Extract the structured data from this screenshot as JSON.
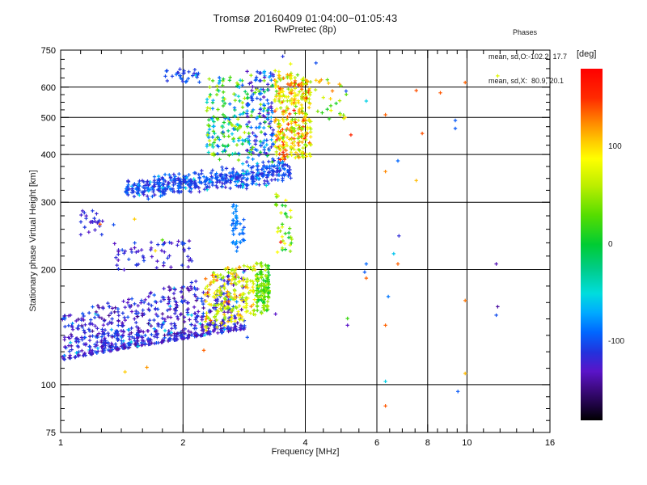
{
  "header": {
    "title": "Tromsø 20160409 01:04:00−01:05:43",
    "subtitle": "RwPretec (8p)"
  },
  "stats": {
    "heading": "Phases",
    "line_o": "mean, sd,O:-102.2, 17.7",
    "line_x": "mean, sd,X:  80.9, 20.1"
  },
  "chart_data": {
    "type": "scatter",
    "title": "Tromsø 20160409 01:04:00−01:05:43",
    "subtitle": "RwPretec (8p)",
    "xlabel": "Frequency [MHz]",
    "ylabel": "Stationary phase Virtual Height [km]",
    "xscale": "log",
    "yscale": "log",
    "xlim": [
      1,
      16
    ],
    "ylim": [
      75,
      750
    ],
    "xticks": [
      1,
      2,
      4,
      6,
      8,
      10,
      16
    ],
    "xticks_minor": [
      1.12,
      1.26,
      1.41,
      1.59,
      1.78,
      2.24,
      2.52,
      2.83,
      3.17,
      3.56,
      4.43,
      4.9,
      5.42,
      6.45,
      6.93,
      7.45,
      8.46,
      8.94,
      9.46,
      10.98,
      12.06,
      13.25,
      14.55
    ],
    "yticks": [
      75,
      100,
      200,
      300,
      400,
      500,
      600,
      750
    ],
    "yticks_minor": [
      80.6,
      86.6,
      93,
      110.4,
      121.9,
      134.6,
      148.6,
      164,
      181.1,
      217,
      235,
      255,
      276.5,
      322.4,
      346.4,
      372.2,
      423,
      447.2,
      472.9,
      523.4,
      547.9,
      573.6,
      634.5,
      670.9,
      709.5
    ],
    "grid_x": [
      2,
      4,
      6,
      8,
      10
    ],
    "grid_y": [
      100,
      200,
      300,
      400,
      500,
      600
    ],
    "grid": true,
    "marker": "plus",
    "seed": 20160409,
    "colorbar": {
      "label": "[deg]",
      "min": -180,
      "max": 180,
      "ticks": [
        100,
        0,
        -100
      ],
      "stops": [
        [
          180,
          "#ff0000"
        ],
        [
          150,
          "#ff2a00"
        ],
        [
          125,
          "#ff8800"
        ],
        [
          105,
          "#ffcc00"
        ],
        [
          88,
          "#ffff00"
        ],
        [
          60,
          "#bbee00"
        ],
        [
          30,
          "#55dd00"
        ],
        [
          0,
          "#00cc33"
        ],
        [
          -25,
          "#00cc88"
        ],
        [
          -50,
          "#00dddd"
        ],
        [
          -70,
          "#00aaff"
        ],
        [
          -90,
          "#0066ff"
        ],
        [
          -110,
          "#2233dd"
        ],
        [
          -130,
          "#5a14c8"
        ],
        [
          -148,
          "#3d0a80"
        ],
        [
          -165,
          "#1d0340"
        ],
        [
          -180,
          "#000000"
        ]
      ]
    },
    "clusters": [
      {
        "name": "e-region-main-cloud",
        "count": 760,
        "f": [
          1.0,
          2.85
        ],
        "h_bottom": [
          116,
          140
        ],
        "h_top": [
          152,
          200
        ],
        "phase": [
          -145,
          -95
        ],
        "phase2": [
          -80,
          -52
        ],
        "phase2_frac": 0.05,
        "bias": "bottom",
        "bias_pow": 2.0,
        "columns": 28
      },
      {
        "name": "e-region-upper-sparse",
        "count": 60,
        "f": [
          1.35,
          2.12
        ],
        "h_bottom": [
          199,
          202
        ],
        "h_top": [
          234,
          238
        ],
        "phase": [
          -135,
          -100
        ],
        "columns": 12
      },
      {
        "name": "left-mid-blob",
        "count": 24,
        "f": [
          1.1,
          1.27
        ],
        "h_bottom": [
          244,
          244
        ],
        "h_top": [
          286,
          286
        ],
        "phase": [
          -130,
          -104
        ]
      },
      {
        "name": "f-region-o-band",
        "count": 490,
        "f": [
          1.44,
          3.7
        ],
        "h_bottom": [
          300,
          332
        ],
        "h_top": [
          345,
          398
        ],
        "phase": [
          -122,
          -85
        ],
        "phase2": [
          -70,
          -45
        ],
        "phase2_frac": 0.07,
        "bias": "center",
        "columns": 32
      },
      {
        "name": "blue-drip-2p7mhz",
        "count": 42,
        "f": [
          2.63,
          2.84
        ],
        "h_bottom": [
          222,
          222
        ],
        "h_top": [
          300,
          300
        ],
        "phase": [
          -100,
          -74
        ],
        "columns": 4
      },
      {
        "name": "upper-mix-left",
        "count": 160,
        "f": [
          2.28,
          2.86
        ],
        "h_bottom": [
          382,
          382
        ],
        "h_top": [
          640,
          640
        ],
        "phase": [
          -100,
          75
        ],
        "columns": 8
      },
      {
        "name": "upper-purple-mid",
        "count": 165,
        "f": [
          2.86,
          3.35
        ],
        "h_bottom": [
          380,
          380
        ],
        "h_top": [
          660,
          660
        ],
        "phase": [
          -135,
          -65
        ],
        "phase2": [
          -15,
          60
        ],
        "phase2_frac": 0.15,
        "columns": 7
      },
      {
        "name": "upper-warm-right",
        "count": 340,
        "f": [
          3.35,
          4.15
        ],
        "h_bottom": [
          380,
          395
        ],
        "h_top": [
          665,
          640
        ],
        "phase": [
          30,
          145
        ],
        "phase2": [
          150,
          178
        ],
        "phase2_frac": 0.05,
        "columns": 10
      },
      {
        "name": "green-4p5mhz",
        "count": 26,
        "f": [
          4.2,
          5.05
        ],
        "h_bottom": [
          495,
          495
        ],
        "h_top": [
          630,
          630
        ],
        "phase": [
          0,
          130
        ]
      },
      {
        "name": "top-blue-650km",
        "count": 30,
        "f": [
          1.8,
          2.2
        ],
        "h_bottom": [
          618,
          618
        ],
        "h_top": [
          672,
          672
        ],
        "phase": [
          -116,
          -88
        ],
        "phase2": [
          -60,
          -50
        ],
        "phase2_frac": 0.05
      },
      {
        "name": "sporadic-e-x-yellow",
        "count": 195,
        "f": [
          2.26,
          3.02
        ],
        "h_bottom": [
          138,
          150
        ],
        "h_top": [
          196,
          210
        ],
        "phase": [
          40,
          115
        ],
        "phase2": [
          122,
          145
        ],
        "phase2_frac": 0.06,
        "columns": 14
      },
      {
        "name": "green-column-3p1mhz",
        "count": 135,
        "f": [
          3.02,
          3.27
        ],
        "h_bottom": [
          148,
          148
        ],
        "h_top": [
          212,
          212
        ],
        "phase": [
          -5,
          65
        ],
        "bias": "center",
        "columns": 4
      },
      {
        "name": "green-streak-3p5mhz",
        "count": 36,
        "f": [
          3.37,
          3.72
        ],
        "h_bottom": [
          222,
          222
        ],
        "h_top": [
          315,
          315
        ],
        "phase": [
          0,
          95
        ],
        "columns": 4
      }
    ],
    "outliers": [
      [
        11.9,
        642,
        75
      ],
      [
        9.9,
        617,
        135
      ],
      [
        7.5,
        588,
        140
      ],
      [
        8.6,
        580,
        138
      ],
      [
        5.65,
        552,
        -55
      ],
      [
        6.3,
        508,
        135
      ],
      [
        9.36,
        491,
        -95
      ],
      [
        9.36,
        468,
        -95
      ],
      [
        7.76,
        454,
        140
      ],
      [
        6.76,
        385,
        -90
      ],
      [
        6.3,
        361,
        125
      ],
      [
        7.5,
        342,
        110
      ],
      [
        6.8,
        245,
        -115
      ],
      [
        6.6,
        220,
        -60
      ],
      [
        5.65,
        207,
        -90
      ],
      [
        6.76,
        207,
        135
      ],
      [
        11.8,
        207,
        -135
      ],
      [
        5.6,
        197,
        -95
      ],
      [
        5.65,
        190,
        135
      ],
      [
        6.4,
        170,
        -85
      ],
      [
        9.9,
        166,
        130
      ],
      [
        11.9,
        160,
        -140
      ],
      [
        11.8,
        152,
        -100
      ],
      [
        6.3,
        143,
        135
      ],
      [
        9.9,
        107,
        110
      ],
      [
        6.3,
        102,
        -55
      ],
      [
        9.5,
        96,
        -95
      ],
      [
        6.3,
        88,
        138
      ],
      [
        5.04,
        586,
        -100
      ],
      [
        5.18,
        450,
        152
      ],
      [
        2.88,
        133,
        -100
      ],
      [
        2.25,
        123,
        135
      ],
      [
        3.38,
        153,
        -130
      ],
      [
        5.08,
        149,
        20
      ],
      [
        5.08,
        143,
        -130
      ],
      [
        1.78,
        239,
        30
      ],
      [
        1.71,
        224,
        100
      ],
      [
        1.52,
        271,
        105
      ],
      [
        1.25,
        263,
        140
      ],
      [
        1.55,
        126,
        -55
      ],
      [
        1.44,
        108,
        105
      ],
      [
        1.63,
        111,
        120
      ],
      [
        3.48,
        236,
        160
      ],
      [
        3.52,
        722,
        -110
      ],
      [
        3.68,
        690,
        80
      ],
      [
        4.25,
        694,
        -100
      ],
      [
        2.1,
        152,
        -60
      ],
      [
        1.35,
        262,
        -100
      ]
    ]
  }
}
